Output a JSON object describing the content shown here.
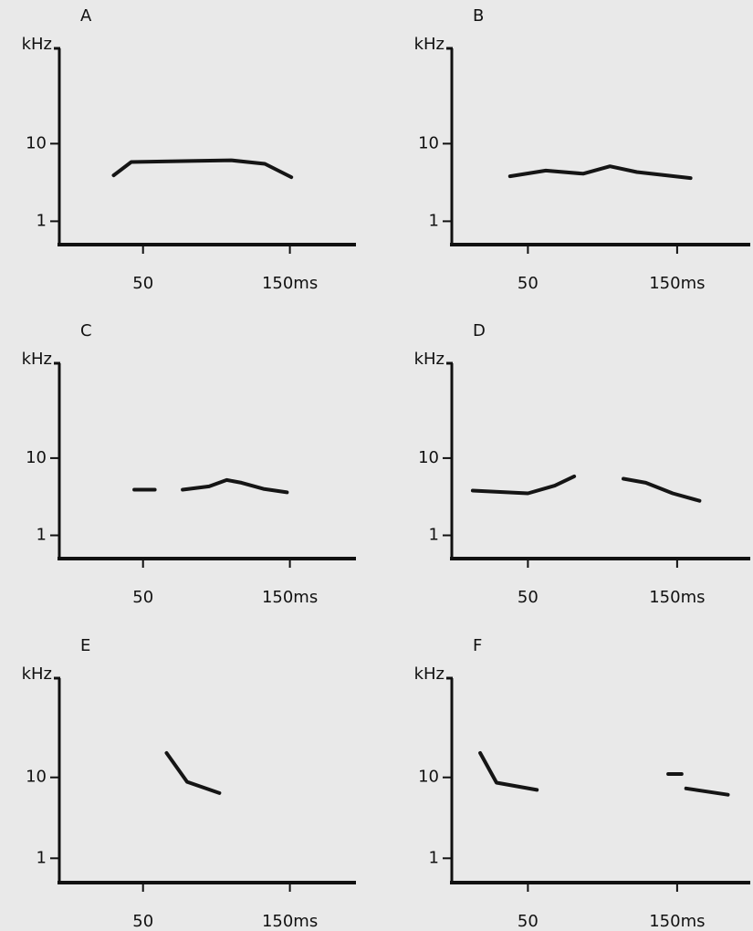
{
  "chart_data": [
    {
      "type": "line",
      "label": "A",
      "ylabel": "kHz",
      "log_y": true,
      "color": "#151515",
      "x": [
        30,
        42,
        86,
        110,
        133,
        151
      ],
      "values": [
        3.9,
        5.8,
        6.0,
        6.1,
        5.5,
        3.7
      ],
      "xlim": [
        -7,
        195
      ],
      "ylim": [
        0.5,
        160
      ],
      "xticks": [
        {
          "value": 50,
          "label": "50"
        },
        {
          "value": 150,
          "label": "150ms"
        }
      ],
      "yticks": [
        1,
        10
      ]
    },
    {
      "type": "line",
      "label": "B",
      "ylabel": "kHz",
      "log_y": true,
      "color": "#151515",
      "x": [
        38,
        62,
        87,
        105,
        123,
        159
      ],
      "values": [
        3.8,
        4.5,
        4.1,
        5.1,
        4.3,
        3.6
      ],
      "xlim": [
        -1,
        199
      ],
      "ylim": [
        0.5,
        160
      ],
      "xticks": [
        {
          "value": 50,
          "label": "50"
        },
        {
          "value": 150,
          "label": "150ms"
        }
      ],
      "yticks": [
        1,
        10
      ]
    },
    {
      "type": "line",
      "label": "C",
      "ylabel": "kHz",
      "log_y": true,
      "color": "#151515",
      "x": [
        44,
        58,
        68,
        77,
        95,
        107,
        117,
        132,
        148
      ],
      "values": [
        3.9,
        3.9,
        null,
        3.9,
        4.3,
        5.2,
        4.8,
        4.0,
        3.6
      ],
      "xlim": [
        -7,
        195
      ],
      "ylim": [
        0.5,
        160
      ],
      "xticks": [
        {
          "value": 50,
          "label": "50"
        },
        {
          "value": 150,
          "label": "150ms"
        }
      ],
      "yticks": [
        1,
        10
      ]
    },
    {
      "type": "line",
      "label": "D",
      "ylabel": "kHz",
      "log_y": true,
      "color": "#151515",
      "x": [
        13,
        50,
        68,
        81,
        95,
        114,
        129,
        147,
        165
      ],
      "values": [
        3.8,
        3.5,
        4.4,
        5.8,
        null,
        5.4,
        4.8,
        3.5,
        2.8
      ],
      "xlim": [
        -1,
        199
      ],
      "ylim": [
        0.5,
        160
      ],
      "xticks": [
        {
          "value": 50,
          "label": "50"
        },
        {
          "value": 150,
          "label": "150ms"
        }
      ],
      "yticks": [
        1,
        10
      ]
    },
    {
      "type": "line",
      "label": "E",
      "ylabel": "kHz",
      "log_y": true,
      "color": "#151515",
      "x": [
        66,
        80,
        102
      ],
      "values": [
        20,
        8.8,
        6.4
      ],
      "xlim": [
        -7,
        195
      ],
      "ylim": [
        0.5,
        160
      ],
      "xticks": [
        {
          "value": 50,
          "label": "50"
        },
        {
          "value": 150,
          "label": "150ms"
        }
      ],
      "yticks": [
        1,
        10
      ]
    },
    {
      "type": "line",
      "label": "F",
      "ylabel": "kHz",
      "log_y": true,
      "color": "#151515",
      "x": [
        18,
        29,
        56,
        100,
        144,
        153,
        155,
        156,
        184
      ],
      "values": [
        20,
        8.6,
        7.0,
        null,
        11,
        11,
        null,
        7.3,
        6.1
      ],
      "xlim": [
        -1,
        199
      ],
      "ylim": [
        0.5,
        160
      ],
      "xticks": [
        {
          "value": 50,
          "label": "50"
        },
        {
          "value": 150,
          "label": "150ms"
        }
      ],
      "yticks": [
        1,
        10
      ]
    }
  ]
}
